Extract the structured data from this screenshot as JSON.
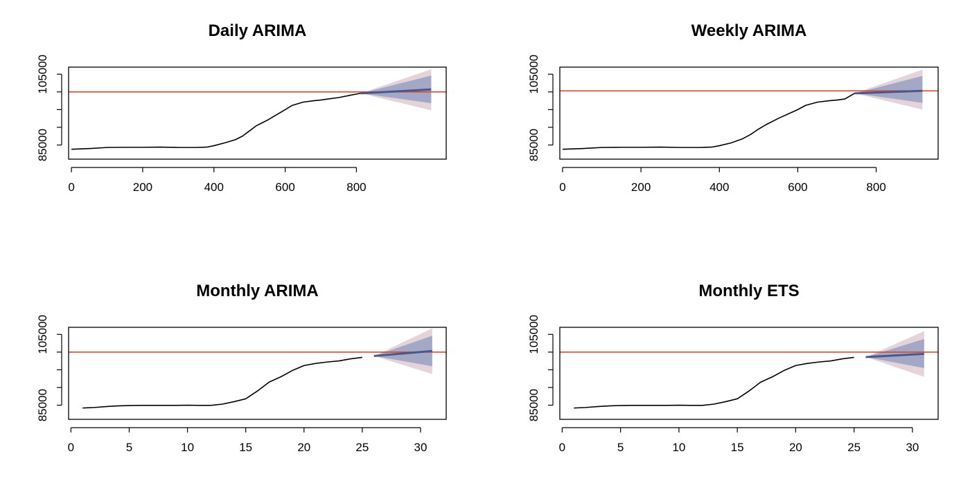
{
  "chart_data": [
    {
      "type": "line",
      "title": "Daily ARIMA",
      "xlabel": "",
      "ylabel": "",
      "xlim": [
        -8,
        1052
      ],
      "ylim": [
        81000,
        107000
      ],
      "xticks": [
        0,
        200,
        400,
        600,
        800
      ],
      "yticks": [
        85000,
        90000,
        95000,
        100000,
        105000
      ],
      "ytick_labels": [
        "85000",
        "",
        "",
        "",
        "105000"
      ],
      "colors": {
        "history": "#000000",
        "forecast": "#4a5788",
        "reference": "#d24a2e",
        "band_inner": "#a2a8c6",
        "band_outer": "#e4d3d8"
      },
      "reference_line": 100000,
      "series": [
        {
          "x": [
            0,
            50,
            100,
            150,
            200,
            250,
            300,
            350,
            380,
            400,
            430,
            460,
            480,
            500,
            520,
            550,
            580,
            600,
            620,
            650,
            680,
            700,
            720,
            750,
            780,
            800,
            812
          ],
          "values": [
            83800,
            84000,
            84300,
            84350,
            84350,
            84400,
            84300,
            84300,
            84400,
            84800,
            85600,
            86500,
            87500,
            89000,
            90500,
            92000,
            93800,
            95000,
            96200,
            97100,
            97500,
            97700,
            98000,
            98400,
            99000,
            99400,
            99600
          ]
        }
      ],
      "forecast": {
        "x": [
          812,
          1010
        ],
        "values": [
          99600,
          100700
        ],
        "lower80": [
          99600,
          96800
        ],
        "upper80": [
          99600,
          104600
        ],
        "lower95": [
          99600,
          94800
        ],
        "upper95": [
          99600,
          106400
        ]
      }
    },
    {
      "type": "line",
      "title": "Weekly ARIMA",
      "xlabel": "",
      "ylabel": "",
      "xlim": [
        -7,
        958
      ],
      "ylim": [
        81000,
        107000
      ],
      "xticks": [
        0,
        200,
        400,
        600,
        800
      ],
      "yticks": [
        85000,
        90000,
        95000,
        100000,
        105000
      ],
      "ytick_labels": [
        "85000",
        "",
        "",
        "",
        "105000"
      ],
      "colors": {
        "history": "#000000",
        "forecast": "#4a5788",
        "reference": "#d24a2e",
        "band_inner": "#a2a8c6",
        "band_outer": "#e4d3d8"
      },
      "reference_line": 100300,
      "series": [
        {
          "x": [
            0,
            50,
            100,
            150,
            200,
            250,
            300,
            350,
            380,
            400,
            430,
            460,
            480,
            500,
            520,
            550,
            580,
            600,
            620,
            650,
            680,
            700,
            720,
            745
          ],
          "values": [
            83800,
            84000,
            84300,
            84350,
            84350,
            84400,
            84300,
            84300,
            84400,
            84800,
            85600,
            86800,
            88000,
            89500,
            90800,
            92500,
            94000,
            95000,
            96200,
            97100,
            97500,
            97700,
            98000,
            99600
          ]
        }
      ],
      "forecast": {
        "x": [
          745,
          918
        ],
        "values": [
          99600,
          100300
        ],
        "lower80": [
          99600,
          96900
        ],
        "upper80": [
          99600,
          104500
        ],
        "lower95": [
          99600,
          95000
        ],
        "upper95": [
          99600,
          106300
        ]
      }
    },
    {
      "type": "line",
      "title": "Monthly ARIMA",
      "xlabel": "",
      "ylabel": "",
      "xlim": [
        -0.2,
        32.2
      ],
      "ylim": [
        81000,
        107000
      ],
      "xticks": [
        0,
        5,
        10,
        15,
        20,
        25,
        30
      ],
      "yticks": [
        85000,
        90000,
        95000,
        100000,
        105000
      ],
      "ytick_labels": [
        "85000",
        "",
        "",
        "",
        "105000"
      ],
      "colors": {
        "history": "#000000",
        "forecast": "#4a5788",
        "reference": "#d24a2e",
        "band_inner": "#a2a8c6",
        "band_outer": "#e4d3d8"
      },
      "reference_line": 100000,
      "series": [
        {
          "x": [
            1,
            2,
            3,
            4,
            5,
            6,
            7,
            8,
            9,
            10,
            11,
            12,
            13,
            14,
            15,
            16,
            17,
            18,
            19,
            20,
            21,
            22,
            23,
            24,
            25
          ],
          "values": [
            84200,
            84350,
            84600,
            84800,
            84900,
            84950,
            84950,
            84950,
            84950,
            85000,
            84950,
            84950,
            85300,
            86000,
            86800,
            89000,
            91500,
            93000,
            94800,
            96200,
            96800,
            97200,
            97500,
            98100,
            98500
          ]
        }
      ],
      "forecast": {
        "x": [
          26,
          31
        ],
        "values": [
          98900,
          100300
        ],
        "lower80": [
          98900,
          96000
        ],
        "upper80": [
          98900,
          104600
        ],
        "lower95": [
          98900,
          93800
        ],
        "upper95": [
          98900,
          106700
        ]
      }
    },
    {
      "type": "line",
      "title": "Monthly ETS",
      "xlabel": "",
      "ylabel": "",
      "xlim": [
        -0.2,
        32.2
      ],
      "ylim": [
        81000,
        107000
      ],
      "xticks": [
        0,
        5,
        10,
        15,
        20,
        25,
        30
      ],
      "yticks": [
        85000,
        90000,
        95000,
        100000,
        105000
      ],
      "ytick_labels": [
        "85000",
        "",
        "",
        "",
        "105000"
      ],
      "colors": {
        "history": "#000000",
        "forecast": "#4a5788",
        "reference": "#d24a2e",
        "band_inner": "#a2a8c6",
        "band_outer": "#e4d3d8"
      },
      "reference_line": 100000,
      "series": [
        {
          "x": [
            1,
            2,
            3,
            4,
            5,
            6,
            7,
            8,
            9,
            10,
            11,
            12,
            13,
            14,
            15,
            16,
            17,
            18,
            19,
            20,
            21,
            22,
            23,
            24,
            25
          ],
          "values": [
            84200,
            84350,
            84600,
            84800,
            84900,
            84950,
            84950,
            84950,
            84950,
            85000,
            84950,
            84950,
            85300,
            86000,
            86800,
            89000,
            91500,
            93000,
            94800,
            96200,
            96800,
            97200,
            97500,
            98100,
            98500
          ]
        }
      ],
      "forecast": {
        "x": [
          26,
          31
        ],
        "values": [
          98600,
          99500
        ],
        "lower80": [
          98600,
          95500
        ],
        "upper80": [
          98600,
          103700
        ],
        "lower95": [
          98600,
          93000
        ],
        "upper95": [
          98600,
          105900
        ]
      }
    }
  ]
}
